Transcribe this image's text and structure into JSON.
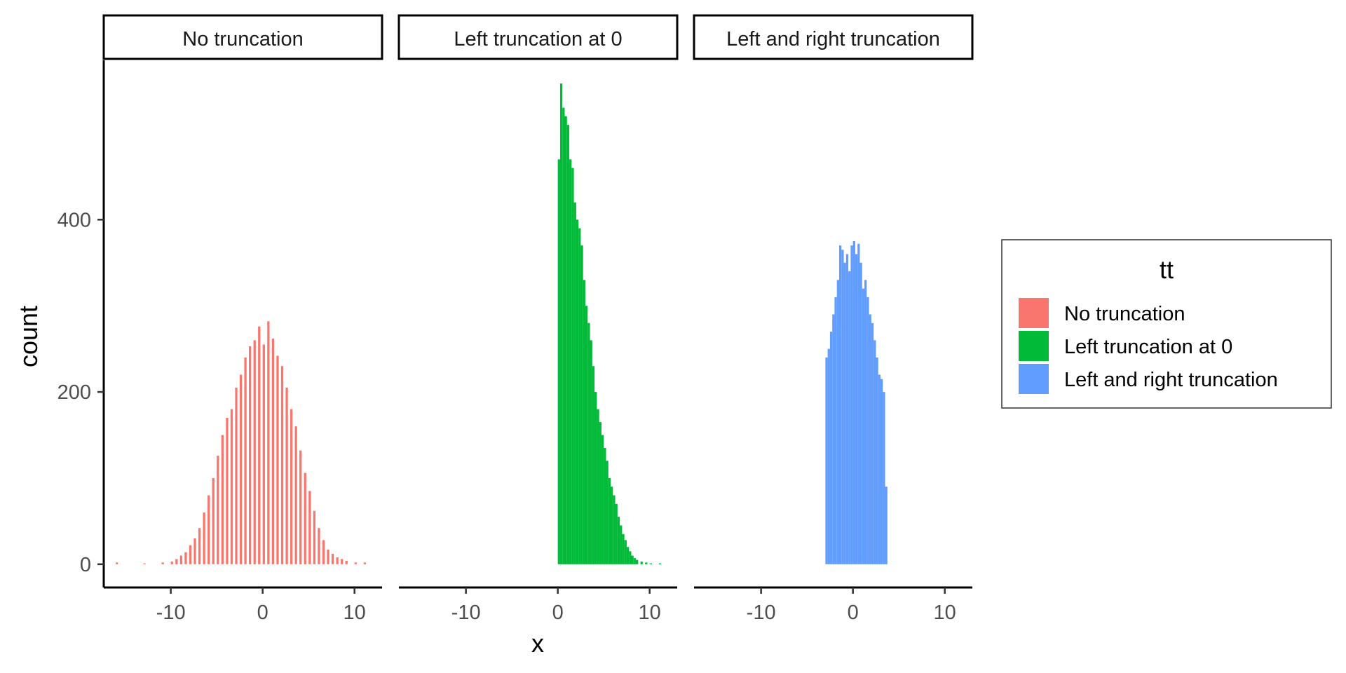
{
  "chart_data": {
    "type": "bar",
    "subtype": "faceted-histogram",
    "xlabel": "x",
    "ylabel": "count",
    "xlim": [
      -17.3,
      13
    ],
    "ylim": [
      -27,
      585
    ],
    "x_ticks": [
      -10,
      0,
      10
    ],
    "y_ticks": [
      0,
      200,
      400
    ],
    "grid": false,
    "legend": {
      "title": "tt",
      "position": "right",
      "entries": [
        {
          "label": "No truncation",
          "color": "#F8766D"
        },
        {
          "label": "Left truncation at 0",
          "color": "#00BA38"
        },
        {
          "label": "Left and right truncation",
          "color": "#619CFF"
        }
      ]
    },
    "facets": [
      {
        "name": "No truncation",
        "color": "#F8766D",
        "bin_width": 0.25,
        "bins": [
          {
            "x": -16.0,
            "y": 2
          },
          {
            "x": -13.0,
            "y": 1
          },
          {
            "x": -11.0,
            "y": 2
          },
          {
            "x": -10.0,
            "y": 3
          },
          {
            "x": -9.5,
            "y": 6
          },
          {
            "x": -9.0,
            "y": 10
          },
          {
            "x": -8.5,
            "y": 14
          },
          {
            "x": -8.0,
            "y": 22
          },
          {
            "x": -7.5,
            "y": 30
          },
          {
            "x": -7.0,
            "y": 42
          },
          {
            "x": -6.5,
            "y": 60
          },
          {
            "x": -6.0,
            "y": 80
          },
          {
            "x": -5.5,
            "y": 100
          },
          {
            "x": -5.0,
            "y": 126
          },
          {
            "x": -4.5,
            "y": 150
          },
          {
            "x": -4.0,
            "y": 170
          },
          {
            "x": -3.5,
            "y": 180
          },
          {
            "x": -3.0,
            "y": 205
          },
          {
            "x": -2.5,
            "y": 220
          },
          {
            "x": -2.0,
            "y": 240
          },
          {
            "x": -1.5,
            "y": 253
          },
          {
            "x": -1.0,
            "y": 260
          },
          {
            "x": -0.5,
            "y": 276
          },
          {
            "x": 0.0,
            "y": 255
          },
          {
            "x": 0.5,
            "y": 282
          },
          {
            "x": 1.0,
            "y": 262
          },
          {
            "x": 1.5,
            "y": 242
          },
          {
            "x": 2.0,
            "y": 230
          },
          {
            "x": 2.5,
            "y": 205
          },
          {
            "x": 3.0,
            "y": 180
          },
          {
            "x": 3.5,
            "y": 160
          },
          {
            "x": 4.0,
            "y": 132
          },
          {
            "x": 4.5,
            "y": 106
          },
          {
            "x": 5.0,
            "y": 85
          },
          {
            "x": 5.5,
            "y": 62
          },
          {
            "x": 6.0,
            "y": 42
          },
          {
            "x": 6.5,
            "y": 28
          },
          {
            "x": 7.0,
            "y": 17
          },
          {
            "x": 7.5,
            "y": 12
          },
          {
            "x": 8.0,
            "y": 8
          },
          {
            "x": 8.5,
            "y": 6
          },
          {
            "x": 9.0,
            "y": 4
          },
          {
            "x": 10.0,
            "y": 2
          },
          {
            "x": 11.0,
            "y": 2
          }
        ]
      },
      {
        "name": "Left truncation at 0",
        "color": "#00BA38",
        "bin_width": 0.25,
        "bins": [
          {
            "x": 0.0,
            "y": 470
          },
          {
            "x": 0.25,
            "y": 558
          },
          {
            "x": 0.5,
            "y": 530
          },
          {
            "x": 0.75,
            "y": 520
          },
          {
            "x": 1.0,
            "y": 510
          },
          {
            "x": 1.25,
            "y": 470
          },
          {
            "x": 1.5,
            "y": 460
          },
          {
            "x": 1.75,
            "y": 420
          },
          {
            "x": 2.0,
            "y": 400
          },
          {
            "x": 2.25,
            "y": 390
          },
          {
            "x": 2.5,
            "y": 370
          },
          {
            "x": 2.75,
            "y": 330
          },
          {
            "x": 3.0,
            "y": 300
          },
          {
            "x": 3.25,
            "y": 280
          },
          {
            "x": 3.5,
            "y": 260
          },
          {
            "x": 3.75,
            "y": 230
          },
          {
            "x": 4.0,
            "y": 200
          },
          {
            "x": 4.25,
            "y": 180
          },
          {
            "x": 4.5,
            "y": 165
          },
          {
            "x": 4.75,
            "y": 150
          },
          {
            "x": 5.0,
            "y": 135
          },
          {
            "x": 5.25,
            "y": 120
          },
          {
            "x": 5.5,
            "y": 100
          },
          {
            "x": 5.75,
            "y": 90
          },
          {
            "x": 6.0,
            "y": 80
          },
          {
            "x": 6.25,
            "y": 70
          },
          {
            "x": 6.5,
            "y": 55
          },
          {
            "x": 6.75,
            "y": 45
          },
          {
            "x": 7.0,
            "y": 35
          },
          {
            "x": 7.25,
            "y": 28
          },
          {
            "x": 7.5,
            "y": 20
          },
          {
            "x": 7.75,
            "y": 15
          },
          {
            "x": 8.0,
            "y": 10
          },
          {
            "x": 8.25,
            "y": 7
          },
          {
            "x": 8.5,
            "y": 5
          },
          {
            "x": 9.0,
            "y": 3
          },
          {
            "x": 9.5,
            "y": 2
          },
          {
            "x": 10.0,
            "y": 1
          },
          {
            "x": 11.0,
            "y": 1
          }
        ]
      },
      {
        "name": "Left and right truncation",
        "color": "#619CFF",
        "bin_width": 0.25,
        "bins": [
          {
            "x": -3.0,
            "y": 240
          },
          {
            "x": -2.75,
            "y": 250
          },
          {
            "x": -2.5,
            "y": 270
          },
          {
            "x": -2.25,
            "y": 290
          },
          {
            "x": -2.0,
            "y": 310
          },
          {
            "x": -1.75,
            "y": 330
          },
          {
            "x": -1.5,
            "y": 370
          },
          {
            "x": -1.25,
            "y": 365
          },
          {
            "x": -1.0,
            "y": 350
          },
          {
            "x": -0.75,
            "y": 360
          },
          {
            "x": -0.5,
            "y": 340
          },
          {
            "x": -0.25,
            "y": 370
          },
          {
            "x": 0.0,
            "y": 375
          },
          {
            "x": 0.25,
            "y": 360
          },
          {
            "x": 0.5,
            "y": 372
          },
          {
            "x": 0.75,
            "y": 350
          },
          {
            "x": 1.0,
            "y": 320
          },
          {
            "x": 1.25,
            "y": 330
          },
          {
            "x": 1.5,
            "y": 310
          },
          {
            "x": 1.75,
            "y": 290
          },
          {
            "x": 2.0,
            "y": 280
          },
          {
            "x": 2.25,
            "y": 260
          },
          {
            "x": 2.5,
            "y": 240
          },
          {
            "x": 2.75,
            "y": 220
          },
          {
            "x": 3.0,
            "y": 215
          },
          {
            "x": 3.25,
            "y": 200
          },
          {
            "x": 3.5,
            "y": 90
          }
        ]
      }
    ]
  }
}
